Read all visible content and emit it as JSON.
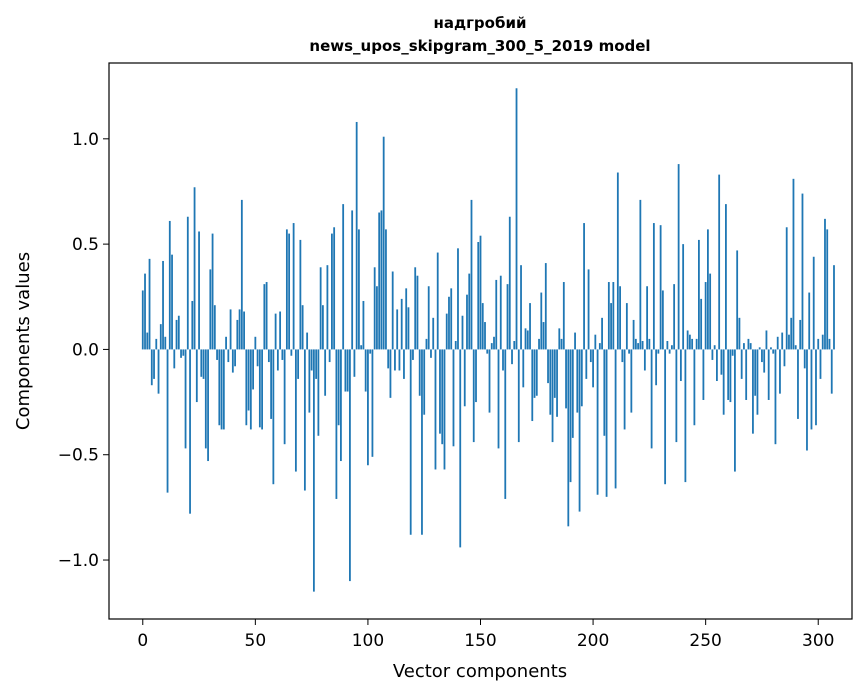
{
  "chart_data": {
    "type": "bar",
    "title_line1": "надгробий",
    "title_line2": "news_upos_skipgram_300_5_2019 model",
    "xlabel": "Vector components",
    "ylabel": "Components values",
    "xlim": [
      -15,
      315
    ],
    "ylim": [
      -1.28,
      1.36
    ],
    "xticks": [
      0,
      50,
      100,
      150,
      200,
      250,
      300
    ],
    "xtick_labels": [
      "0",
      "50",
      "100",
      "150",
      "200",
      "250",
      "300"
    ],
    "yticks": [
      -1.0,
      -0.5,
      0.0,
      0.5,
      1.0
    ],
    "ytick_labels": [
      "−1.0",
      "−0.5",
      "0.0",
      "0.5",
      "1.0"
    ],
    "bar_color": "#1f77b4",
    "values": [
      0.28,
      0.36,
      0.08,
      0.43,
      -0.17,
      -0.14,
      0.05,
      -0.21,
      0.12,
      0.42,
      0.06,
      -0.68,
      0.61,
      0.45,
      -0.09,
      0.14,
      0.16,
      -0.04,
      -0.03,
      -0.47,
      0.63,
      -0.78,
      0.23,
      0.77,
      -0.25,
      0.56,
      -0.13,
      -0.14,
      -0.47,
      -0.53,
      0.38,
      0.55,
      0.21,
      -0.05,
      -0.36,
      -0.38,
      -0.38,
      0.06,
      -0.06,
      0.19,
      -0.11,
      -0.08,
      0.14,
      0.19,
      0.71,
      0.18,
      -0.36,
      -0.29,
      -0.38,
      -0.19,
      0.06,
      -0.08,
      -0.37,
      -0.38,
      0.31,
      0.32,
      -0.06,
      -0.33,
      -0.64,
      0.17,
      -0.1,
      0.18,
      -0.05,
      -0.45,
      0.57,
      0.55,
      -0.03,
      0.6,
      -0.58,
      -0.14,
      0.52,
      0.21,
      -0.67,
      0.08,
      -0.3,
      -0.1,
      -1.15,
      -0.14,
      -0.41,
      0.39,
      0.21,
      -0.22,
      0.4,
      -0.06,
      0.55,
      0.58,
      -0.71,
      -0.36,
      -0.53,
      0.69,
      -0.2,
      -0.2,
      -1.1,
      0.66,
      -0.13,
      1.08,
      0.57,
      0.02,
      0.23,
      -0.2,
      -0.55,
      -0.02,
      -0.51,
      0.39,
      0.3,
      0.65,
      0.66,
      1.01,
      0.57,
      -0.09,
      -0.23,
      0.37,
      -0.1,
      0.19,
      -0.1,
      0.24,
      -0.14,
      0.29,
      0.2,
      -0.88,
      -0.05,
      0.39,
      0.35,
      -0.22,
      -0.88,
      -0.31,
      0.05,
      0.3,
      -0.04,
      0.15,
      -0.57,
      0.46,
      -0.4,
      -0.45,
      -0.57,
      0.17,
      0.25,
      0.29,
      -0.46,
      0.04,
      0.48,
      -0.94,
      0.16,
      -0.27,
      0.26,
      0.36,
      0.71,
      -0.44,
      -0.25,
      0.51,
      0.54,
      0.22,
      0.13,
      -0.02,
      -0.3,
      0.03,
      0.06,
      0.33,
      -0.47,
      0.35,
      -0.1,
      -0.71,
      0.31,
      0.63,
      -0.07,
      0.04,
      1.24,
      -0.44,
      0.4,
      -0.18,
      0.1,
      0.09,
      0.22,
      -0.34,
      -0.23,
      -0.22,
      0.05,
      0.27,
      0.13,
      0.41,
      -0.16,
      -0.31,
      -0.44,
      -0.23,
      -0.32,
      0.1,
      0.05,
      0.32,
      -0.28,
      -0.84,
      -0.63,
      -0.42,
      0.08,
      -0.3,
      -0.77,
      -0.27,
      0.6,
      -0.14,
      0.38,
      -0.06,
      -0.18,
      0.07,
      -0.69,
      0.03,
      0.15,
      -0.41,
      -0.7,
      0.32,
      0.22,
      0.32,
      -0.66,
      0.84,
      0.3,
      -0.06,
      -0.38,
      0.22,
      -0.02,
      -0.3,
      0.14,
      0.05,
      0.03,
      0.71,
      0.04,
      -0.1,
      0.3,
      0.05,
      -0.47,
      0.6,
      -0.17,
      -0.02,
      0.59,
      0.28,
      -0.64,
      0.04,
      -0.02,
      0.02,
      0.31,
      -0.44,
      0.88,
      -0.15,
      0.5,
      -0.63,
      0.09,
      0.07,
      0.05,
      -0.36,
      0.05,
      0.52,
      0.24,
      -0.24,
      0.32,
      0.57,
      0.36,
      -0.05,
      0.02,
      -0.15,
      0.83,
      -0.12,
      -0.31,
      0.69,
      -0.24,
      -0.25,
      -0.03,
      -0.58,
      0.47,
      0.15,
      -0.14,
      0.03,
      -0.24,
      0.05,
      0.03,
      -0.4,
      -0.22,
      -0.31,
      0.01,
      -0.06,
      -0.11,
      0.09,
      -0.24,
      0.01,
      -0.02,
      -0.45,
      0.06,
      -0.21,
      0.08,
      -0.08,
      0.58,
      0.07,
      0.15,
      0.81,
      0.02,
      -0.33,
      0.14,
      0.74,
      -0.09,
      -0.48,
      0.27,
      -0.38,
      0.44,
      -0.36,
      0.05,
      -0.14,
      0.07,
      0.62,
      0.57,
      0.05,
      -0.21,
      0.4
    ]
  }
}
